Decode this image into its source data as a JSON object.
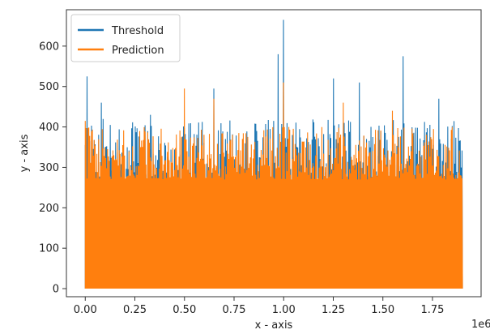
{
  "chart_data": {
    "type": "line",
    "title": "",
    "xlabel": "x - axis",
    "ylabel": "y - axis",
    "x_offset_label": "1e6",
    "xlim": [
      -0.095,
      1.995
    ],
    "ylim": [
      -20,
      690
    ],
    "x_ticks": [
      0.0,
      0.25,
      0.5,
      0.75,
      1.0,
      1.25,
      1.5,
      1.75
    ],
    "x_tick_labels": [
      "0.00",
      "0.25",
      "0.50",
      "0.75",
      "1.00",
      "1.25",
      "1.50",
      "1.75"
    ],
    "y_ticks": [
      0,
      100,
      200,
      300,
      400,
      500,
      600
    ],
    "y_tick_labels": [
      "0",
      "100",
      "200",
      "300",
      "400",
      "500",
      "600"
    ],
    "x_data_range": [
      0,
      1.9
    ],
    "legend_position": "upper-left",
    "grid": false,
    "series": [
      {
        "name": "Threshold",
        "color": "#1f77b4",
        "baseline_low": 0,
        "typical_peak_range": [
          260,
          420
        ],
        "notable_peaks": [
          {
            "x": 0.01,
            "y": 525
          },
          {
            "x": 0.08,
            "y": 460
          },
          {
            "x": 0.33,
            "y": 430
          },
          {
            "x": 0.65,
            "y": 495
          },
          {
            "x": 0.97,
            "y": 580
          },
          {
            "x": 1.0,
            "y": 665
          },
          {
            "x": 1.25,
            "y": 520
          },
          {
            "x": 1.38,
            "y": 510
          },
          {
            "x": 1.6,
            "y": 575
          },
          {
            "x": 1.78,
            "y": 470
          }
        ]
      },
      {
        "name": "Prediction",
        "color": "#ff7f0e",
        "baseline_low": 0,
        "typical_peak_range": [
          270,
          400
        ],
        "notable_peaks": [
          {
            "x": 0.0,
            "y": 415
          },
          {
            "x": 0.5,
            "y": 495
          },
          {
            "x": 0.65,
            "y": 470
          },
          {
            "x": 1.0,
            "y": 510
          },
          {
            "x": 1.3,
            "y": 460
          },
          {
            "x": 1.55,
            "y": 440
          },
          {
            "x": 1.85,
            "y": 400
          }
        ]
      }
    ]
  }
}
